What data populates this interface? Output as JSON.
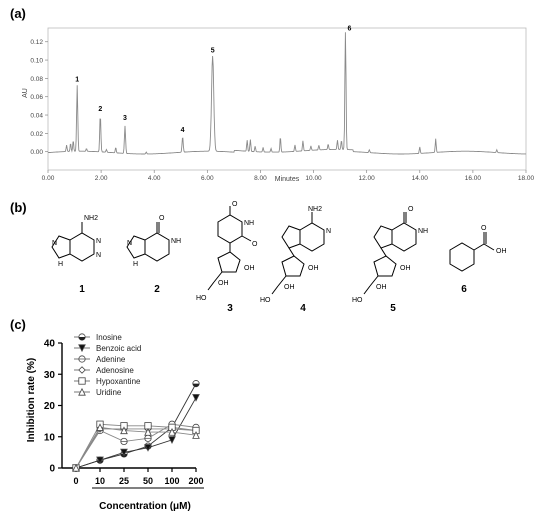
{
  "panels": {
    "a": "(a)",
    "b": "(b)",
    "c": "(c)"
  },
  "chart_data": [
    {
      "type": "line",
      "panel": "a",
      "xlabel": "Minutes",
      "ylabel": "AU",
      "xlim": [
        0,
        18
      ],
      "ylim": [
        -0.02,
        0.135
      ],
      "xticks": [
        "0.00",
        "2.00",
        "4.00",
        "6.00",
        "8.00",
        "10.00",
        "12.00",
        "14.00",
        "16.00",
        "18.00"
      ],
      "yticks": [
        "0.00",
        "0.02",
        "0.04",
        "0.06",
        "0.08",
        "0.10",
        "0.12"
      ],
      "peaks": [
        {
          "label": "1",
          "x": 1.1,
          "y": 0.072
        },
        {
          "label": "2",
          "x": 1.97,
          "y": 0.04
        },
        {
          "label": "3",
          "x": 2.9,
          "y": 0.03
        },
        {
          "label": "4",
          "x": 5.07,
          "y": 0.017
        },
        {
          "label": "5",
          "x": 6.2,
          "y": 0.104
        },
        {
          "label": "6",
          "x": 11.2,
          "y": 0.128
        }
      ],
      "minor_peaks": [
        {
          "x": 0.7,
          "y": 0.007
        },
        {
          "x": 0.85,
          "y": 0.009
        },
        {
          "x": 0.95,
          "y": 0.012
        },
        {
          "x": 1.45,
          "y": 0.003
        },
        {
          "x": 2.2,
          "y": 0.003
        },
        {
          "x": 2.55,
          "y": 0.006
        },
        {
          "x": 3.7,
          "y": 0.002
        },
        {
          "x": 7.5,
          "y": 0.012
        },
        {
          "x": 7.62,
          "y": 0.013
        },
        {
          "x": 7.8,
          "y": 0.006
        },
        {
          "x": 8.1,
          "y": 0.005
        },
        {
          "x": 8.4,
          "y": 0.004
        },
        {
          "x": 8.75,
          "y": 0.017
        },
        {
          "x": 9.3,
          "y": 0.007
        },
        {
          "x": 9.6,
          "y": 0.011
        },
        {
          "x": 9.9,
          "y": 0.005
        },
        {
          "x": 10.2,
          "y": 0.005
        },
        {
          "x": 10.55,
          "y": 0.006
        },
        {
          "x": 10.9,
          "y": 0.01
        },
        {
          "x": 11.05,
          "y": 0.01
        },
        {
          "x": 12.1,
          "y": 0.003
        },
        {
          "x": 14.0,
          "y": 0.007
        },
        {
          "x": 14.6,
          "y": 0.015
        },
        {
          "x": 16.9,
          "y": 0.003
        }
      ]
    },
    {
      "type": "line",
      "panel": "c",
      "xlabel": "Concentration (μM)",
      "ylabel": "Inhibition rate (%)",
      "categories": [
        "0",
        "10",
        "25",
        "50",
        "100",
        "200"
      ],
      "ylim": [
        0,
        40
      ],
      "yticks": [
        "0",
        "10",
        "20",
        "30",
        "40"
      ],
      "series": [
        {
          "name": "Inosine",
          "marker": "circle-half",
          "values": [
            0,
            2.5,
            4.5,
            7,
            13,
            27
          ]
        },
        {
          "name": "Benzoic acid",
          "marker": "triangle-down",
          "values": [
            0,
            2.5,
            5,
            6.5,
            9,
            22.5
          ]
        },
        {
          "name": "Adenine",
          "marker": "circle-cross",
          "values": [
            0,
            12,
            8.5,
            9.5,
            14,
            13
          ]
        },
        {
          "name": "Adenosine",
          "marker": "diamond",
          "values": [
            0,
            12.5,
            12.5,
            12.5,
            12.5,
            12
          ]
        },
        {
          "name": "Hypoxantine",
          "marker": "square",
          "values": [
            0,
            14,
            13.5,
            13.5,
            13,
            12
          ]
        },
        {
          "name": "Uridine",
          "marker": "triangle-up",
          "values": [
            0,
            13,
            12,
            11.5,
            11.5,
            10.5
          ]
        }
      ]
    }
  ],
  "structures": [
    {
      "id": "1",
      "label": "1",
      "substituent": "NH2",
      "ring_atoms": [
        "N",
        "N",
        "N",
        "H"
      ]
    },
    {
      "id": "2",
      "label": "2",
      "substituent": "O",
      "ring_atoms": [
        "N",
        "NH",
        "N",
        "H"
      ]
    },
    {
      "id": "3",
      "label": "3",
      "substituent": "O",
      "ring_atoms": [
        "NH",
        "O",
        "OH",
        "OH",
        "HO"
      ]
    },
    {
      "id": "4",
      "label": "4",
      "substituent": "NH2",
      "ring_atoms": [
        "N",
        "N",
        "N",
        "O",
        "OH",
        "OH",
        "HO"
      ]
    },
    {
      "id": "5",
      "label": "5",
      "substituent": "O",
      "ring_atoms": [
        "N",
        "NH",
        "N",
        "O",
        "OH",
        "OH",
        "HO"
      ]
    },
    {
      "id": "6",
      "label": "6",
      "substituent": "O",
      "ring_atoms": [
        "OH"
      ]
    }
  ],
  "colors": {
    "chromatogram": "#8a8a8a",
    "axis": "#000000"
  }
}
